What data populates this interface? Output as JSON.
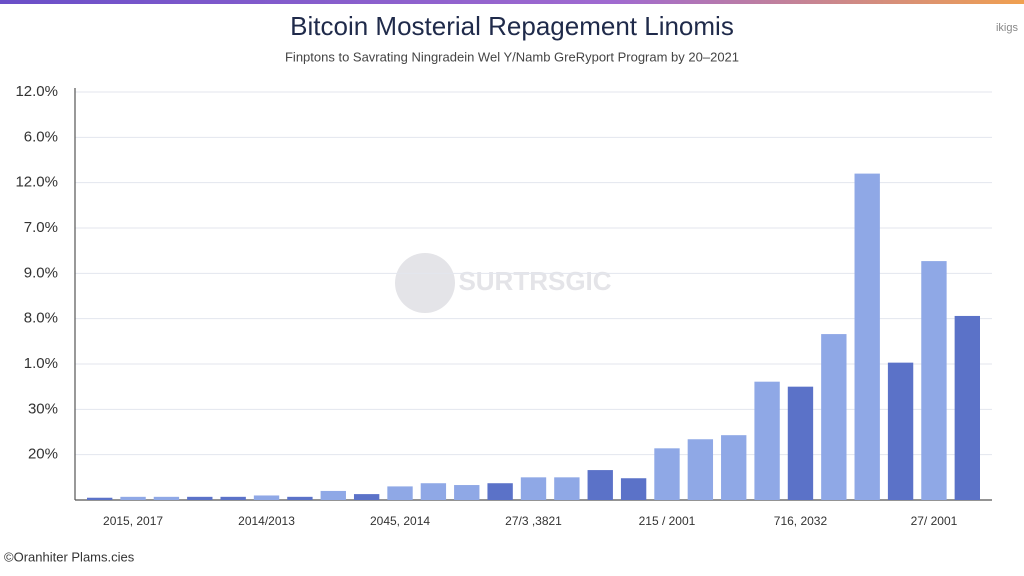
{
  "chart_data": {
    "type": "bar",
    "title": "Bitcoin Mosterial Repagement Linomis",
    "subtitle": "Finptons to Savrating Ningradein Wel Y/Namb GreRyport Program by 20–2021",
    "corner_text": "ikigs",
    "watermark": "SURTRSGIC",
    "footer": "©Oranhiter Plams.cies",
    "categories": [
      null,
      "2015, 2017",
      null,
      null,
      null,
      "2014/2013",
      null,
      null,
      null,
      "2045, 2014",
      null,
      null,
      null,
      "27/3 ,3821",
      null,
      null,
      null,
      "215 / 2001",
      null,
      null,
      null,
      "716, 2032",
      null,
      null,
      null,
      "27/ 2001",
      null
    ],
    "values": [
      0.05,
      0.07,
      0.07,
      0.07,
      0.07,
      0.1,
      0.07,
      0.2,
      0.13,
      0.3,
      0.37,
      0.33,
      0.37,
      0.5,
      0.5,
      0.66,
      0.48,
      1.14,
      1.34,
      1.43,
      2.61,
      2.5,
      3.66,
      7.2,
      3.03,
      5.27,
      4.06
    ],
    "colors": [
      "#5b72c8",
      "#8fa8e6",
      "#8fa8e6",
      "#5b72c8",
      "#5b72c8",
      "#8fa8e6",
      "#5b72c8",
      "#8fa8e6",
      "#5b72c8",
      "#8fa8e6",
      "#8fa8e6",
      "#8fa8e6",
      "#5b72c8",
      "#8fa8e6",
      "#8fa8e6",
      "#5b72c8",
      "#5b72c8",
      "#8fa8e6",
      "#8fa8e6",
      "#8fa8e6",
      "#8fa8e6",
      "#5b72c8",
      "#8fa8e6",
      "#8fa8e6",
      "#5b72c8",
      "#8fa8e6",
      "#5b72c8"
    ],
    "ylim": [
      0,
      9
    ],
    "yticks": [
      {
        "value": 1,
        "label": "20%"
      },
      {
        "value": 2,
        "label": "30%"
      },
      {
        "value": 3,
        "label": "1.0%"
      },
      {
        "value": 4,
        "label": "8.0%"
      },
      {
        "value": 5,
        "label": "9.0%"
      },
      {
        "value": 6,
        "label": "7.0%"
      },
      {
        "value": 7,
        "label": "12.0%"
      },
      {
        "value": 8,
        "label": "6.0%"
      },
      {
        "value": 9,
        "label": "12.0%"
      }
    ],
    "grid": true
  }
}
